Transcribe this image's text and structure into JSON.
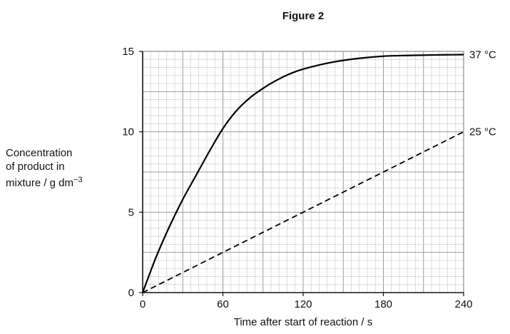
{
  "chart_data": {
    "type": "line",
    "title": "Figure 2",
    "xlabel": "Time after start of reaction / s",
    "ylabel_lines": [
      "Concentration",
      "of product in",
      "mixture / g dm"
    ],
    "ylabel_superscript": "−3",
    "xlim": [
      0,
      240
    ],
    "ylim": [
      0,
      15
    ],
    "x_ticks": [
      "0",
      "60",
      "120",
      "180",
      "240"
    ],
    "y_ticks": [
      "0",
      "5",
      "10",
      "15"
    ],
    "grid": true,
    "series": [
      {
        "name": "37 °C",
        "style": "solid",
        "x": [
          0,
          10,
          20,
          30,
          40,
          50,
          60,
          70,
          80,
          90,
          100,
          110,
          120,
          140,
          160,
          180,
          200,
          220,
          240
        ],
        "y": [
          0,
          2.2,
          4.1,
          5.8,
          7.3,
          8.8,
          10.2,
          11.3,
          12.1,
          12.7,
          13.2,
          13.6,
          13.9,
          14.3,
          14.55,
          14.7,
          14.75,
          14.78,
          14.8
        ]
      },
      {
        "name": "25 °C",
        "style": "dashed",
        "x": [
          0,
          240
        ],
        "y": [
          0,
          10
        ]
      }
    ]
  }
}
